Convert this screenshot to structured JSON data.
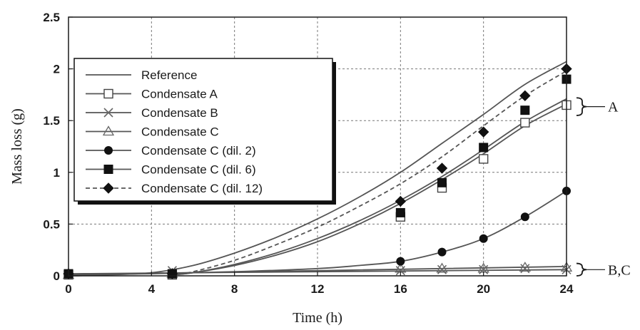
{
  "chart_data": {
    "type": "line",
    "xlabel": "Time (h)",
    "ylabel": "Mass loss (g)",
    "xlim": [
      0,
      24
    ],
    "ylim": [
      0,
      2.5
    ],
    "xticks": [
      "0",
      "4",
      "8",
      "12",
      "16",
      "20",
      "24"
    ],
    "yticks": [
      "0",
      "0.5",
      "1",
      "1.5",
      "2",
      "2.5"
    ],
    "grid": true,
    "legend_position": "top-left",
    "series": [
      {
        "name": "Reference",
        "marker": "none",
        "dash": false,
        "curve_only": true,
        "x": [
          0,
          2,
          4,
          6,
          8,
          10,
          12,
          14,
          16,
          18,
          20,
          22,
          24
        ],
        "y": [
          0,
          0.01,
          0.03,
          0.1,
          0.22,
          0.37,
          0.55,
          0.76,
          1.0,
          1.28,
          1.56,
          1.85,
          2.07
        ]
      },
      {
        "name": "Condensate A",
        "marker": "open-square",
        "dash": false,
        "curve_x": [
          5,
          6,
          8,
          10,
          12,
          14,
          16,
          18,
          20,
          22,
          24
        ],
        "curve_y": [
          0.01,
          0.03,
          0.1,
          0.2,
          0.33,
          0.5,
          0.7,
          0.93,
          1.18,
          1.45,
          1.66
        ],
        "x": [
          0,
          5,
          16,
          18,
          20,
          22,
          24
        ],
        "y": [
          0.01,
          0.01,
          0.57,
          0.85,
          1.13,
          1.48,
          1.65
        ]
      },
      {
        "name": "Condensate B",
        "marker": "x",
        "dash": false,
        "curve_x": [
          0,
          24
        ],
        "curve_y": [
          0.02,
          0.06
        ],
        "x": [
          0,
          5,
          16,
          18,
          20,
          22,
          24
        ],
        "y": [
          0.02,
          0.05,
          0.05,
          0.06,
          0.06,
          0.07,
          0.06
        ]
      },
      {
        "name": "Condensate C",
        "marker": "open-triangle",
        "dash": false,
        "curve_x": [
          0,
          24
        ],
        "curve_y": [
          0.01,
          0.09
        ],
        "x": [
          0,
          5,
          16,
          18,
          20,
          22,
          24
        ],
        "y": [
          0.01,
          0.02,
          0.07,
          0.07,
          0.07,
          0.08,
          0.08
        ]
      },
      {
        "name": "Condensate C (dil. 2)",
        "marker": "filled-circle",
        "dash": false,
        "curve_x": [
          0,
          4,
          8,
          12,
          14,
          16,
          18,
          20,
          22,
          24
        ],
        "curve_y": [
          0.01,
          0.02,
          0.04,
          0.07,
          0.1,
          0.14,
          0.23,
          0.36,
          0.57,
          0.82
        ],
        "x": [
          0,
          5,
          16,
          18,
          20,
          22,
          24
        ],
        "y": [
          0.02,
          0.02,
          0.14,
          0.23,
          0.36,
          0.57,
          0.82
        ]
      },
      {
        "name": "Condensate C (dil. 6)",
        "marker": "filled-square",
        "dash": false,
        "curve_x": [
          5,
          6,
          8,
          10,
          12,
          14,
          16,
          18,
          20,
          22,
          24
        ],
        "curve_y": [
          0.01,
          0.03,
          0.11,
          0.22,
          0.36,
          0.53,
          0.73,
          0.96,
          1.22,
          1.49,
          1.71
        ],
        "x": [
          0,
          5,
          16,
          18,
          20,
          22,
          24
        ],
        "y": [
          0.02,
          0.02,
          0.61,
          0.9,
          1.24,
          1.6,
          1.9
        ]
      },
      {
        "name": "Condensate C (dil. 12)",
        "marker": "filled-diamond",
        "dash": true,
        "curve_x": [
          5,
          6,
          8,
          10,
          12,
          14,
          16,
          18,
          20,
          22,
          24
        ],
        "curve_y": [
          0.01,
          0.04,
          0.15,
          0.3,
          0.47,
          0.67,
          0.89,
          1.15,
          1.45,
          1.74,
          1.98
        ],
        "x": [
          0,
          5,
          16,
          18,
          20,
          22,
          24
        ],
        "y": [
          0.02,
          0.02,
          0.72,
          1.04,
          1.39,
          1.74,
          2.0
        ]
      }
    ],
    "groups": [
      {
        "label": "A",
        "y_range": [
          1.55,
          1.72
        ]
      },
      {
        "label": "B,C",
        "y_range": [
          0.0,
          0.12
        ]
      }
    ]
  }
}
